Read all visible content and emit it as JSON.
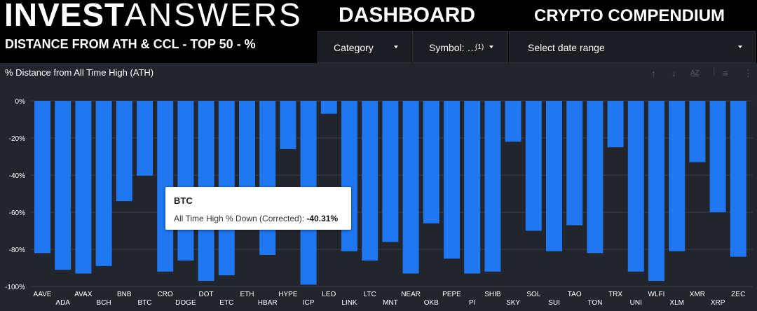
{
  "header": {
    "brand_bold": "INVEST",
    "brand_light": "ANSWERS",
    "dashboard": "DASHBOARD",
    "compendium": "CRYPTO COMPENDIUM",
    "subtitle": "DISTANCE FROM ATH & CCL - TOP 50 - %"
  },
  "filters": {
    "category": "Category",
    "symbol": "Symbol: …",
    "symbol_count": "(1)",
    "date_range": "Select date range"
  },
  "panel": {
    "title": "% Distance from All Time High (ATH)",
    "sort_az": "AZ"
  },
  "tooltip": {
    "symbol": "BTC",
    "label": "All Time High % Down (Corrected): ",
    "value": "-40.31%"
  },
  "colors": {
    "bar": "#1f77f2",
    "grid": "#3a3d46",
    "background": "#23252c",
    "text": "#ffffff"
  },
  "chart_data": {
    "type": "bar",
    "title": "% Distance from All Time High (ATH)",
    "categories": [
      "AAVE",
      "ADA",
      "AVAX",
      "BCH",
      "BNB",
      "BTC",
      "CRO",
      "DOGE",
      "DOT",
      "ETC",
      "ETH",
      "HBAR",
      "HYPE",
      "ICP",
      "LEO",
      "LINK",
      "LTC",
      "MNT",
      "NEAR",
      "OKB",
      "PEPE",
      "PI",
      "SHIB",
      "SKY",
      "SOL",
      "SUI",
      "TAO",
      "TON",
      "TRX",
      "UNI",
      "WLFI",
      "XLM",
      "XMR",
      "XRP",
      "ZEC"
    ],
    "values": [
      -82,
      -91,
      -93,
      -89,
      -54,
      -40.31,
      -92,
      -86,
      -97,
      -94,
      -69,
      -83,
      -26,
      -99,
      -7,
      -81,
      -86,
      -76,
      -93,
      -66,
      -85,
      -93,
      -92,
      -22,
      -70,
      -81,
      -67,
      -82,
      -25,
      -92,
      -97,
      -81,
      -33,
      -60,
      -84
    ],
    "ylim": [
      -100,
      0
    ],
    "yticks": [
      0,
      -20,
      -40,
      -60,
      -80,
      -100
    ],
    "ytick_labels": [
      "0%",
      "-20%",
      "-40%",
      "-60%",
      "-80%",
      "-100%"
    ],
    "grid": true,
    "legend": "none"
  }
}
